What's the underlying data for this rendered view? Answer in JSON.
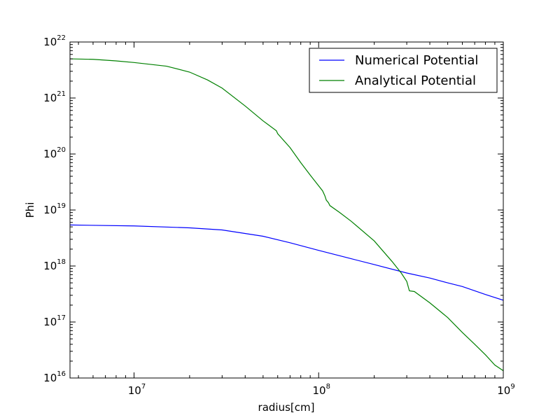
{
  "chart_data": {
    "type": "line",
    "xlabel": "radius[cm]",
    "ylabel": "Phi",
    "xscale": "log",
    "yscale": "log",
    "xlim": [
      4500000.0,
      1000000000.0
    ],
    "ylim": [
      1e+16,
      1e+22
    ],
    "grid": false,
    "legend_position": "top-right",
    "x_ticks": [
      {
        "value": 10000000.0,
        "base": "10",
        "exp": "7"
      },
      {
        "value": 100000000.0,
        "base": "10",
        "exp": "8"
      },
      {
        "value": 1000000000.0,
        "base": "10",
        "exp": "9"
      }
    ],
    "y_ticks": [
      {
        "value": 1e+16,
        "base": "10",
        "exp": "16"
      },
      {
        "value": 1e+17,
        "base": "10",
        "exp": "17"
      },
      {
        "value": 1e+18,
        "base": "10",
        "exp": "18"
      },
      {
        "value": 1e+19,
        "base": "10",
        "exp": "19"
      },
      {
        "value": 1e+20,
        "base": "10",
        "exp": "20"
      },
      {
        "value": 1e+21,
        "base": "10",
        "exp": "21"
      },
      {
        "value": 1e+22,
        "base": "10",
        "exp": "22"
      }
    ],
    "series": [
      {
        "name": "Numerical Potential",
        "color": "#0000ff",
        "points": [
          [
            4500000.0,
            5.4e+18
          ],
          [
            10000000.0,
            5.2e+18
          ],
          [
            20000000.0,
            4.8e+18
          ],
          [
            30000000.0,
            4.4e+18
          ],
          [
            50000000.0,
            3.4e+18
          ],
          [
            70000000.0,
            2.6e+18
          ],
          [
            100000000.0,
            1.9e+18
          ],
          [
            150000000.0,
            1.35e+18
          ],
          [
            200000000.0,
            1.06e+18
          ],
          [
            300000000.0,
            7.5e+17
          ],
          [
            400000000.0,
            6.1e+17
          ],
          [
            500000000.0,
            5e+17
          ],
          [
            600000000.0,
            4.3e+17
          ],
          [
            800000000.0,
            3.1e+17
          ],
          [
            1000000000.0,
            2.45e+17
          ]
        ]
      },
      {
        "name": "Analytical Potential",
        "color": "#008000",
        "points": [
          [
            4500000.0,
            5e+21
          ],
          [
            6000000.0,
            4.9e+21
          ],
          [
            8000000.0,
            4.6e+21
          ],
          [
            10000000.0,
            4.3e+21
          ],
          [
            15000000.0,
            3.7e+21
          ],
          [
            20000000.0,
            2.9e+21
          ],
          [
            25000000.0,
            2.1e+21
          ],
          [
            30000000.0,
            1.5e+21
          ],
          [
            40000000.0,
            7.2e+20
          ],
          [
            50000000.0,
            3.9e+20
          ],
          [
            59000000.0,
            2.6e+20
          ],
          [
            60000000.0,
            2.3e+20
          ],
          [
            70000000.0,
            1.3e+20
          ],
          [
            80000000.0,
            7e+19
          ],
          [
            90000000.0,
            4.2e+19
          ],
          [
            105000000.0,
            2.2e+19
          ],
          [
            108000000.0,
            1.8e+19
          ],
          [
            110000000.0,
            1.5e+19
          ],
          [
            113000000.0,
            1.35e+19
          ],
          [
            115000000.0,
            1.2e+19
          ],
          [
            130000000.0,
            9e+18
          ],
          [
            150000000.0,
            6.3e+18
          ],
          [
            200000000.0,
            2.8e+18
          ],
          [
            250000000.0,
            1.2e+18
          ],
          [
            280000000.0,
            7.5e+17
          ],
          [
            300000000.0,
            5.3e+17
          ],
          [
            310000000.0,
            3.6e+17
          ],
          [
            330000000.0,
            3.5e+17
          ],
          [
            400000000.0,
            2.2e+17
          ],
          [
            500000000.0,
            1.2e+17
          ],
          [
            600000000.0,
            6.5e+16
          ],
          [
            700000000.0,
            4e+16
          ],
          [
            800000000.0,
            2.6e+16
          ],
          [
            900000000.0,
            1.7e+16
          ],
          [
            1000000000.0,
            1.35e+16
          ]
        ]
      }
    ]
  }
}
